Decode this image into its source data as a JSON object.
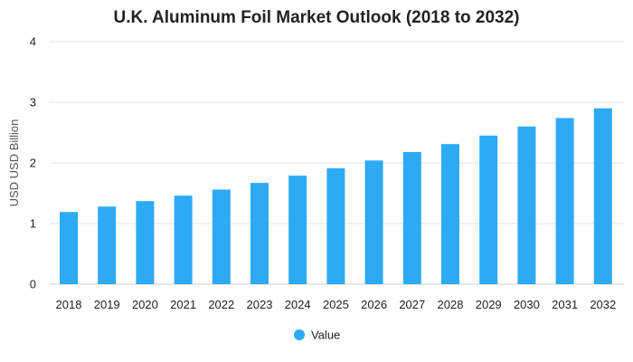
{
  "chart_data": {
    "type": "bar",
    "title": "U.K. Aluminum Foil Market Outlook (2018 to 2032)",
    "xlabel": "",
    "ylabel": "USD USD Billion",
    "categories": [
      "2018",
      "2019",
      "2020",
      "2021",
      "2022",
      "2023",
      "2024",
      "2025",
      "2026",
      "2027",
      "2028",
      "2029",
      "2030",
      "2031",
      "2032"
    ],
    "series": [
      {
        "name": "Value",
        "color": "#2eaaf5",
        "values": [
          1.19,
          1.28,
          1.37,
          1.46,
          1.56,
          1.67,
          1.79,
          1.91,
          2.04,
          2.18,
          2.31,
          2.45,
          2.6,
          2.74,
          2.9
        ]
      }
    ],
    "ylim": [
      0,
      4
    ],
    "yticks": [
      "0",
      "1",
      "2",
      "3",
      "4"
    ],
    "grid": true,
    "legend_position": "bottom-center"
  }
}
